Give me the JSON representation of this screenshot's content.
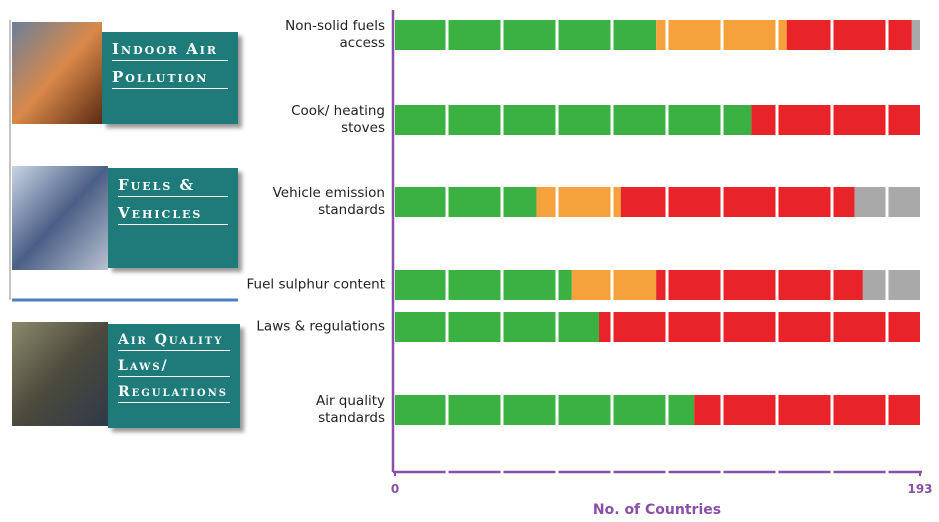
{
  "chart_data": {
    "type": "stacked-barh",
    "panels": [
      [
        "Indoor Air",
        "Pollution"
      ],
      [
        "Fuels &",
        "Vehicles"
      ],
      [
        "Air Quality",
        "Laws/",
        "Regulations"
      ]
    ],
    "categories": [
      "Non-solid fuels access",
      "Cook/ heating stoves",
      "Vehicle emission standards",
      "Fuel sulphur content",
      "Laws & regulations",
      "Air quality standards"
    ],
    "series": [
      {
        "color": "#3bb143",
        "values": [
          96,
          131,
          52,
          65,
          75,
          110
        ]
      },
      {
        "color": "#f5a23c",
        "values": [
          48,
          0,
          31,
          31,
          0,
          0
        ]
      },
      {
        "color": "#e8232a",
        "values": [
          46,
          62,
          86,
          76,
          118,
          83
        ]
      },
      {
        "color": "#a9a9a9",
        "values": [
          3,
          0,
          24,
          21,
          0,
          0
        ]
      }
    ],
    "xlim": [
      0,
      193
    ],
    "xticks": [
      0,
      193
    ],
    "xlabel": "No. of Countries"
  }
}
